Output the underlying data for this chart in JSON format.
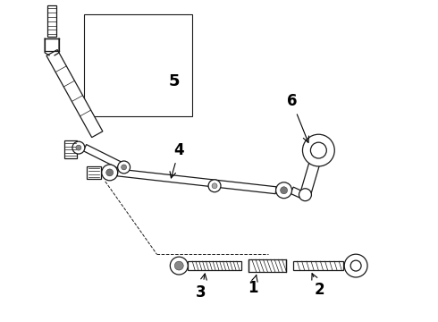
{
  "bg_color": "#ffffff",
  "line_color": "#1a1a1a",
  "label_color": "#000000",
  "fig_width": 4.9,
  "fig_height": 3.6,
  "dpi": 100,
  "label_fontsize": 12
}
